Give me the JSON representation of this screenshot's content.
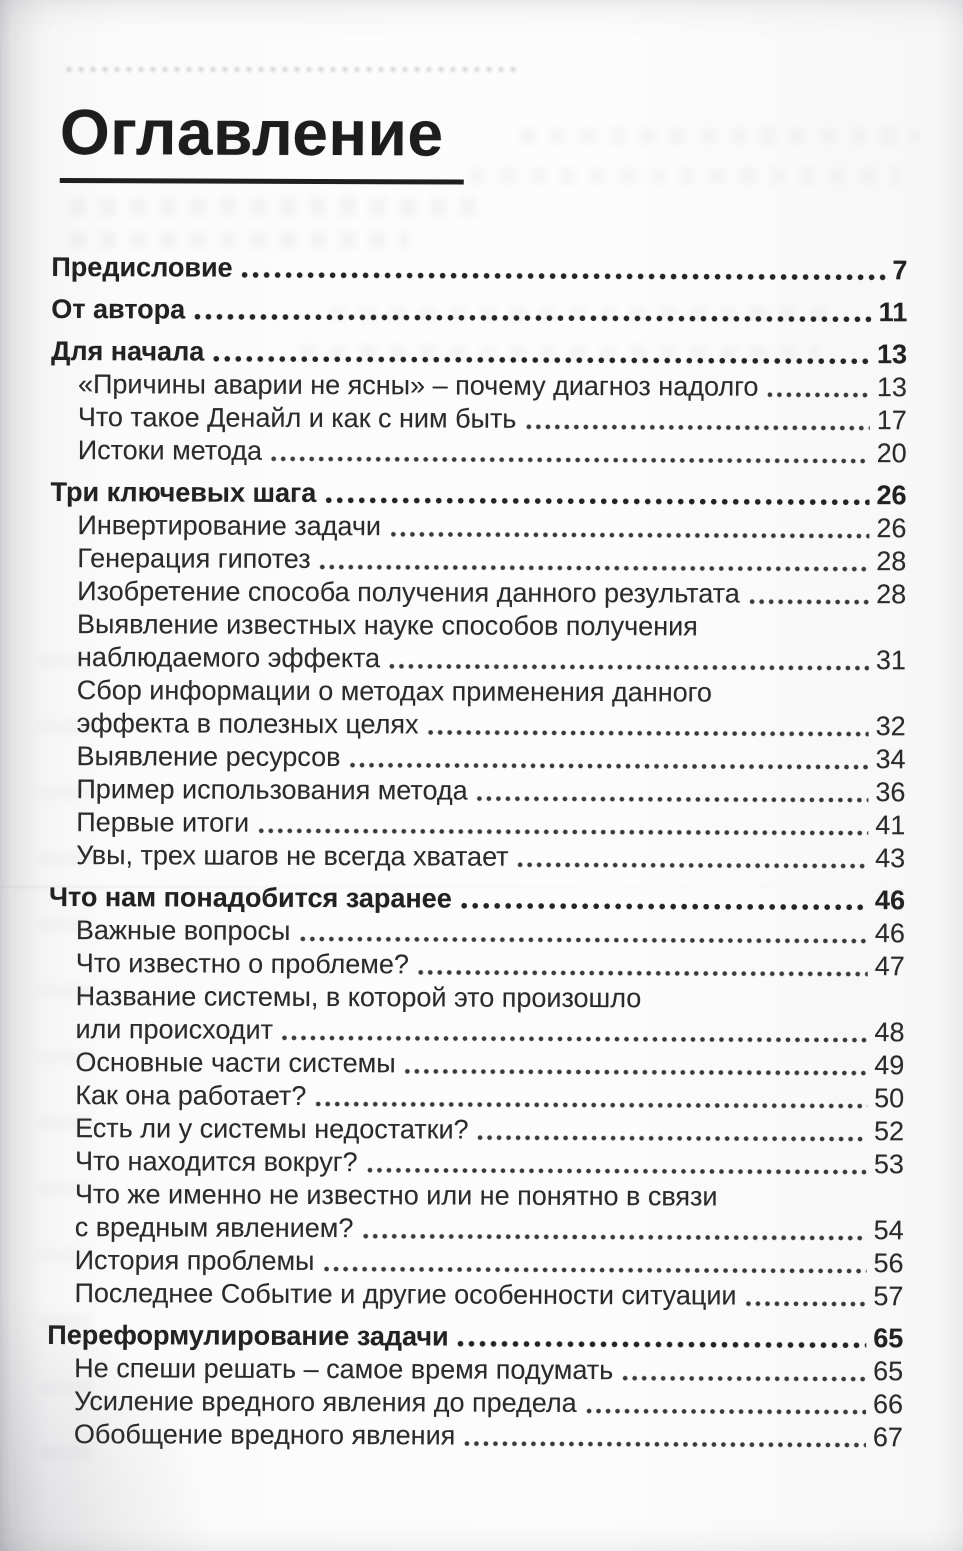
{
  "page": {
    "title": "Оглавление"
  },
  "colors": {
    "ink": "#2b2b2b",
    "paper": "#fbfbfb"
  },
  "toc": {
    "entries": [
      {
        "text": "Предисловие",
        "page": "7",
        "bold": true,
        "indent": 0
      },
      {
        "text": "От автора",
        "page": "11",
        "bold": true,
        "indent": 0
      },
      {
        "text": "Для начала",
        "page": "13",
        "bold": true,
        "indent": 0
      },
      {
        "text": "«Причины аварии не ясны» – почему диагноз надолго",
        "page": "13",
        "bold": false,
        "indent": 1
      },
      {
        "text": "Что такое Денайл и как с ним быть",
        "page": "17",
        "bold": false,
        "indent": 1
      },
      {
        "text": "Истоки метода",
        "page": "20",
        "bold": false,
        "indent": 1
      },
      {
        "text": "Три ключевых шага",
        "page": "26",
        "bold": true,
        "indent": 0
      },
      {
        "text": "Инвертирование задачи",
        "page": "26",
        "bold": false,
        "indent": 1
      },
      {
        "text": "Генерация гипотез",
        "page": "28",
        "bold": false,
        "indent": 1
      },
      {
        "text": "Изобретение способа получения данного результата",
        "page": "28",
        "bold": false,
        "indent": 1
      },
      {
        "text": "Выявление известных науке способов получения",
        "page": "",
        "bold": false,
        "indent": 1
      },
      {
        "text": "наблюдаемого эффекта",
        "page": "31",
        "bold": false,
        "indent": 1
      },
      {
        "text": "Сбор информации о методах применения данного",
        "page": "",
        "bold": false,
        "indent": 1
      },
      {
        "text": "эффекта в полезных целях",
        "page": "32",
        "bold": false,
        "indent": 1
      },
      {
        "text": "Выявление ресурсов",
        "page": "34",
        "bold": false,
        "indent": 1
      },
      {
        "text": "Пример использования метода",
        "page": "36",
        "bold": false,
        "indent": 1
      },
      {
        "text": "Первые итоги",
        "page": "41",
        "bold": false,
        "indent": 1
      },
      {
        "text": "Увы, трех шагов не всегда хватает",
        "page": "43",
        "bold": false,
        "indent": 1
      },
      {
        "text": "Что нам понадобится заранее",
        "page": "46",
        "bold": true,
        "indent": 0
      },
      {
        "text": "Важные вопросы",
        "page": "46",
        "bold": false,
        "indent": 1
      },
      {
        "text": "Что известно о проблеме?",
        "page": "47",
        "bold": false,
        "indent": 1
      },
      {
        "text": "Название системы, в которой это произошло",
        "page": "",
        "bold": false,
        "indent": 1
      },
      {
        "text": "или происходит",
        "page": "48",
        "bold": false,
        "indent": 1
      },
      {
        "text": "Основные части системы",
        "page": "49",
        "bold": false,
        "indent": 1
      },
      {
        "text": "Как она работает?",
        "page": "50",
        "bold": false,
        "indent": 1
      },
      {
        "text": "Есть ли у системы недостатки?",
        "page": "52",
        "bold": false,
        "indent": 1
      },
      {
        "text": "Что находится вокруг?",
        "page": "53",
        "bold": false,
        "indent": 1
      },
      {
        "text": "Что же именно не известно или не понятно в связи",
        "page": "",
        "bold": false,
        "indent": 1
      },
      {
        "text": "с вредным явлением?",
        "page": "54",
        "bold": false,
        "indent": 1
      },
      {
        "text": "История проблемы",
        "page": "56",
        "bold": false,
        "indent": 1
      },
      {
        "text": "Последнее Событие и другие особенности ситуации",
        "page": "57",
        "bold": false,
        "indent": 1
      },
      {
        "text": "Переформулирование задачи",
        "page": "65",
        "bold": true,
        "indent": 0
      },
      {
        "text": "Не спеши решать – самое время подумать",
        "page": "65",
        "bold": false,
        "indent": 1
      },
      {
        "text": "Усиление вредного явления до предела",
        "page": "66",
        "bold": false,
        "indent": 1
      },
      {
        "text": "Обобщение вредного явления",
        "page": "67",
        "bold": false,
        "indent": 1
      }
    ]
  }
}
